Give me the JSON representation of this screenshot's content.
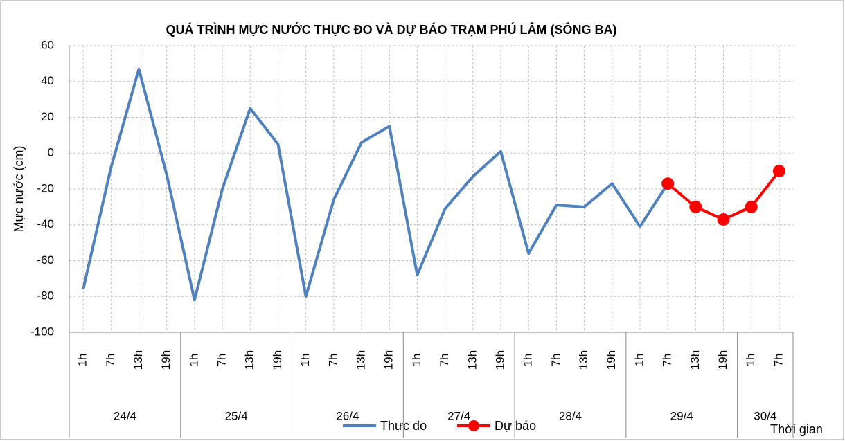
{
  "chart_data": {
    "type": "line",
    "title": "QUÁ TRÌNH MỰC NƯỚC THỰC ĐO VÀ DỰ BÁO TRẠM PHÚ LÂM (SÔNG BA)",
    "y_label": "Mực nước (cm)",
    "x_label": "Thời gian",
    "groups": [
      {
        "label": "24/4",
        "categories": [
          "1h",
          "7h",
          "13h",
          "19h"
        ]
      },
      {
        "label": "25/4",
        "categories": [
          "1h",
          "7h",
          "13h",
          "19h"
        ]
      },
      {
        "label": "26/4",
        "categories": [
          "1h",
          "7h",
          "13h",
          "19h"
        ]
      },
      {
        "label": "27/4",
        "categories": [
          "1h",
          "7h",
          "13h",
          "19h"
        ]
      },
      {
        "label": "28/4",
        "categories": [
          "1h",
          "7h",
          "13h",
          "19h"
        ]
      },
      {
        "label": "29/4",
        "categories": [
          "1h",
          "7h",
          "13h",
          "19h"
        ]
      },
      {
        "label": "30/4",
        "categories": [
          "1h",
          "7h"
        ]
      }
    ],
    "series": [
      {
        "name": "Thực đo",
        "color": "#4f81bd",
        "marker": false,
        "values": [
          -76,
          -8,
          47,
          -12,
          -82,
          -20,
          25,
          5,
          -80,
          -26,
          6,
          15,
          -68,
          -31,
          -13,
          1,
          -56,
          -29,
          -30,
          -17,
          -41,
          -17,
          null,
          null,
          null,
          null
        ]
      },
      {
        "name": "Dự báo",
        "color": "#ff0000",
        "marker": true,
        "values": [
          null,
          null,
          null,
          null,
          null,
          null,
          null,
          null,
          null,
          null,
          null,
          null,
          null,
          null,
          null,
          null,
          null,
          null,
          null,
          null,
          null,
          -17,
          -30,
          -37,
          -30,
          -10
        ]
      }
    ],
    "ylim": [
      -100,
      60
    ],
    "yticks": [
      -100,
      -80,
      -60,
      -40,
      -20,
      0,
      20,
      40,
      60
    ],
    "grid": true,
    "legend": "bottom"
  }
}
